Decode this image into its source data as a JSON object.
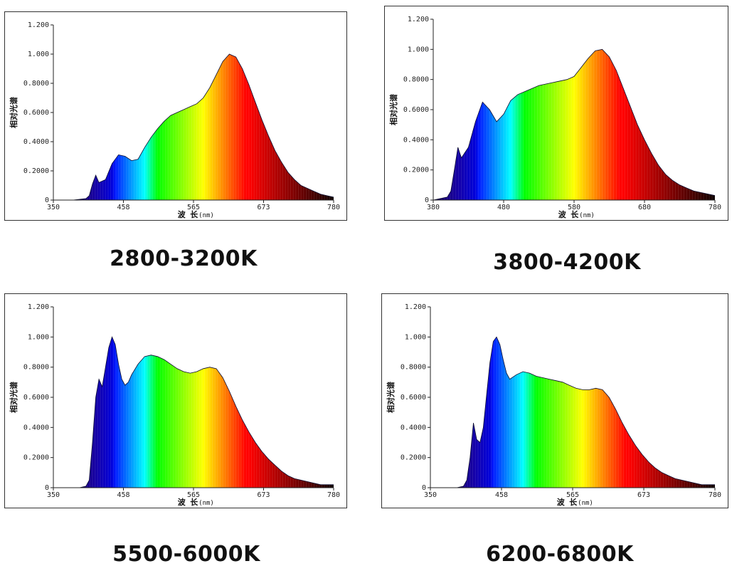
{
  "chart_data": [
    {
      "type": "area",
      "caption": "2800-3200K",
      "ylabel": "相对光谱",
      "xlabel": "波 长",
      "xunit": "(nm)",
      "xlim": [
        350,
        780
      ],
      "ylim": [
        0,
        1.2
      ],
      "xticks": [
        "350",
        "458",
        "565",
        "673",
        "780"
      ],
      "yticks": [
        "0",
        "0.2000",
        "0.4000",
        "0.6000",
        "0.8000",
        "1.000",
        "1.200"
      ],
      "grid": false,
      "series": [
        {
          "x": [
            350,
            380,
            400,
            405,
            410,
            415,
            420,
            430,
            440,
            450,
            460,
            470,
            480,
            490,
            500,
            510,
            520,
            530,
            540,
            550,
            560,
            570,
            580,
            590,
            600,
            610,
            620,
            630,
            640,
            650,
            660,
            670,
            680,
            690,
            700,
            710,
            720,
            730,
            740,
            750,
            760,
            770,
            780
          ],
          "values": [
            0,
            0,
            0.01,
            0.03,
            0.11,
            0.17,
            0.12,
            0.14,
            0.25,
            0.31,
            0.3,
            0.27,
            0.28,
            0.36,
            0.43,
            0.49,
            0.54,
            0.58,
            0.6,
            0.62,
            0.64,
            0.66,
            0.7,
            0.77,
            0.86,
            0.95,
            1.0,
            0.98,
            0.9,
            0.79,
            0.67,
            0.55,
            0.44,
            0.34,
            0.26,
            0.19,
            0.14,
            0.1,
            0.08,
            0.06,
            0.04,
            0.03,
            0.02
          ]
        }
      ]
    },
    {
      "type": "area",
      "caption": "3800-4200K",
      "ylabel": "相对光谱",
      "xlabel": "波 长",
      "xunit": "(nm)",
      "xlim": [
        380,
        780
      ],
      "ylim": [
        0,
        1.2
      ],
      "xticks": [
        "380",
        "480",
        "580",
        "680",
        "780"
      ],
      "yticks": [
        "0",
        "0.2000",
        "0.4000",
        "0.6000",
        "0.8000",
        "1.000",
        "1.200"
      ],
      "grid": false,
      "series": [
        {
          "x": [
            380,
            400,
            405,
            410,
            415,
            420,
            430,
            440,
            450,
            460,
            470,
            480,
            490,
            500,
            510,
            520,
            530,
            540,
            550,
            560,
            570,
            580,
            590,
            600,
            610,
            620,
            630,
            640,
            650,
            660,
            670,
            680,
            690,
            700,
            710,
            720,
            730,
            740,
            750,
            760,
            770,
            780
          ],
          "values": [
            0,
            0.02,
            0.06,
            0.2,
            0.35,
            0.28,
            0.35,
            0.52,
            0.65,
            0.6,
            0.52,
            0.57,
            0.66,
            0.7,
            0.72,
            0.74,
            0.76,
            0.77,
            0.78,
            0.79,
            0.8,
            0.82,
            0.88,
            0.94,
            0.99,
            1.0,
            0.95,
            0.86,
            0.74,
            0.62,
            0.5,
            0.4,
            0.31,
            0.23,
            0.17,
            0.13,
            0.1,
            0.08,
            0.06,
            0.05,
            0.04,
            0.03
          ]
        }
      ]
    },
    {
      "type": "area",
      "caption": "5500-6000K",
      "ylabel": "相对光谱",
      "xlabel": "波 长",
      "xunit": "(nm)",
      "xlim": [
        350,
        780
      ],
      "ylim": [
        0,
        1.2
      ],
      "xticks": [
        "350",
        "458",
        "565",
        "673",
        "780"
      ],
      "yticks": [
        "0",
        "0.2000",
        "0.4000",
        "0.6000",
        "0.8000",
        "1.000",
        "1.200"
      ],
      "grid": false,
      "series": [
        {
          "x": [
            350,
            390,
            400,
            405,
            410,
            415,
            420,
            425,
            430,
            435,
            440,
            445,
            450,
            455,
            460,
            465,
            470,
            480,
            490,
            500,
            510,
            520,
            530,
            540,
            550,
            560,
            570,
            580,
            590,
            600,
            610,
            620,
            630,
            640,
            650,
            660,
            670,
            680,
            690,
            700,
            710,
            720,
            730,
            740,
            750,
            760,
            770,
            780
          ],
          "values": [
            0,
            0,
            0.01,
            0.05,
            0.3,
            0.6,
            0.72,
            0.67,
            0.8,
            0.93,
            1.0,
            0.95,
            0.82,
            0.72,
            0.68,
            0.7,
            0.75,
            0.82,
            0.87,
            0.88,
            0.87,
            0.85,
            0.82,
            0.79,
            0.77,
            0.76,
            0.77,
            0.79,
            0.8,
            0.79,
            0.73,
            0.64,
            0.54,
            0.45,
            0.37,
            0.3,
            0.24,
            0.19,
            0.15,
            0.11,
            0.08,
            0.06,
            0.05,
            0.04,
            0.03,
            0.02,
            0.02,
            0.02
          ]
        }
      ]
    },
    {
      "type": "area",
      "caption": "6200-6800K",
      "ylabel": "相对光谱",
      "xlabel": "波 长",
      "xunit": "(nm)",
      "xlim": [
        350,
        780
      ],
      "ylim": [
        0,
        1.2
      ],
      "xticks": [
        "350",
        "458",
        "565",
        "673",
        "780"
      ],
      "yticks": [
        "0",
        "0.2000",
        "0.4000",
        "0.6000",
        "0.8000",
        "1.000",
        "1.200"
      ],
      "grid": false,
      "series": [
        {
          "x": [
            350,
            390,
            400,
            405,
            410,
            415,
            420,
            425,
            430,
            435,
            440,
            445,
            450,
            455,
            460,
            465,
            470,
            480,
            490,
            500,
            510,
            520,
            530,
            540,
            550,
            560,
            570,
            580,
            590,
            600,
            610,
            620,
            630,
            640,
            650,
            660,
            670,
            680,
            690,
            700,
            710,
            720,
            730,
            740,
            750,
            760,
            770,
            780
          ],
          "values": [
            0,
            0,
            0.01,
            0.05,
            0.2,
            0.43,
            0.32,
            0.3,
            0.4,
            0.62,
            0.83,
            0.97,
            1.0,
            0.95,
            0.85,
            0.76,
            0.72,
            0.75,
            0.77,
            0.76,
            0.74,
            0.73,
            0.72,
            0.71,
            0.7,
            0.68,
            0.66,
            0.65,
            0.65,
            0.66,
            0.65,
            0.6,
            0.52,
            0.43,
            0.35,
            0.28,
            0.22,
            0.17,
            0.13,
            0.1,
            0.08,
            0.06,
            0.05,
            0.04,
            0.03,
            0.02,
            0.02,
            0.02
          ]
        }
      ]
    }
  ]
}
